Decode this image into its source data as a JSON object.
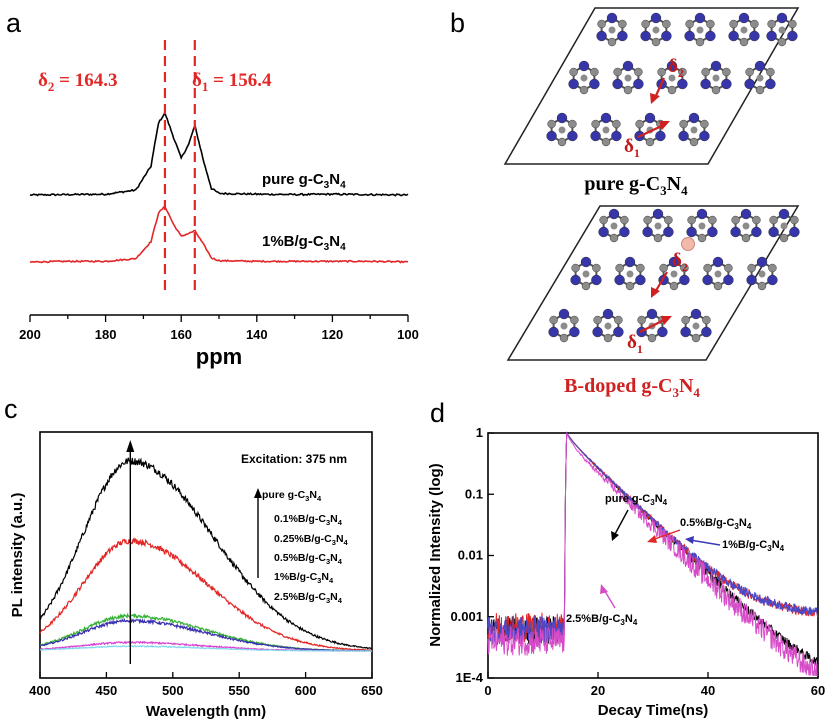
{
  "panels": {
    "a": "a",
    "b": "b",
    "c": "c",
    "d": "d"
  },
  "chart_data": [
    {
      "panel": "a",
      "type": "line",
      "xlabel": "ppm",
      "ylabel": "",
      "xlim": [
        200,
        100
      ],
      "xticks": [
        200,
        180,
        160,
        140,
        120,
        100
      ],
      "series": [
        {
          "name": "pure g-C3N4",
          "label": "pure g-C",
          "color": "#000000",
          "x": [
            200,
            190,
            180,
            172,
            168,
            166,
            164.3,
            162,
            160,
            158,
            156.4,
            154,
            152,
            150,
            140,
            130,
            120,
            110,
            100
          ],
          "y": [
            0,
            0.005,
            0.01,
            0.06,
            0.35,
            0.88,
            1.0,
            0.7,
            0.45,
            0.62,
            0.85,
            0.4,
            0.08,
            0.02,
            0.01,
            0.005,
            0.01,
            0.005,
            0
          ]
        },
        {
          "name": "1%B/g-C3N4",
          "label": "1%B/g-C",
          "color": "#e32626",
          "x": [
            200,
            190,
            180,
            172,
            168,
            166,
            164.3,
            162,
            160,
            158,
            156.4,
            154,
            152,
            150,
            140,
            130,
            120,
            110,
            100
          ],
          "y": [
            0,
            0.01,
            0.01,
            0.05,
            0.3,
            0.72,
            0.82,
            0.55,
            0.38,
            0.42,
            0.46,
            0.25,
            0.06,
            0.02,
            0.01,
            0.01,
            0.01,
            0.01,
            0
          ]
        }
      ],
      "annotations": [
        {
          "text": "δ2 = 164.3",
          "main": "δ",
          "sub": "2",
          "rest": " = 164.3",
          "x": 164.3,
          "color": "#e32626"
        },
        {
          "text": "δ1 = 156.4",
          "main": "δ",
          "sub": "1",
          "rest": " = 156.4",
          "x": 156.4,
          "color": "#e32626"
        }
      ]
    },
    {
      "panel": "c",
      "type": "line",
      "title": "Excitation: 375 nm",
      "xlabel": "Wavelength (nm)",
      "ylabel": "PL intensity (a.u.)",
      "xlim": [
        400,
        650
      ],
      "ylim": [
        0,
        1.05
      ],
      "xticks": [
        400,
        450,
        500,
        550,
        600,
        650
      ],
      "series": [
        {
          "name": "pure g-C3N4",
          "label": "pure g-C",
          "color": "#000000",
          "peak": 1.0,
          "sigL": 36,
          "sigR": 62
        },
        {
          "name": "0.1%B/g-C3N4",
          "label": "0.1%B/g-C",
          "color": "#e32626",
          "peak": 0.58,
          "sigL": 36,
          "sigR": 58
        },
        {
          "name": "0.25%B/g-C3N4",
          "label": "0.25%B/g-C",
          "color": "#33b033",
          "peak": 0.185,
          "sigL": 36,
          "sigR": 56
        },
        {
          "name": "0.5%B/g-C3N4",
          "label": "0.5%B/g-C",
          "color": "#3a2fb0",
          "peak": 0.16,
          "sigL": 36,
          "sigR": 56
        },
        {
          "name": "1%B/g-C3N4",
          "label": "1%B/g-C",
          "color": "#d93fd0",
          "peak": 0.045,
          "sigL": 38,
          "sigR": 56
        },
        {
          "name": "2.5%B/g-C3N4",
          "label": "2.5%B/g-C",
          "color": "#7fd7ea",
          "peak": 0.025,
          "sigL": 40,
          "sigR": 56
        }
      ],
      "peak_wavelength": 468
    },
    {
      "panel": "d",
      "type": "line",
      "xlabel": "Decay Time(ns)",
      "ylabel": "Normalized Intensity (log)",
      "xlim": [
        0,
        60
      ],
      "ylim": [
        0.0001,
        1
      ],
      "yscale": "log",
      "xticks": [
        0,
        20,
        40,
        60
      ],
      "yticks": [
        1,
        0.1,
        0.01,
        0.001,
        0.0001
      ],
      "yticklabels": [
        "1",
        "0.1",
        "0.01",
        "0.001",
        "1E-4"
      ],
      "pulse_time": 14.3,
      "series": [
        {
          "name": "pure g-C3N4",
          "label": "pure g-C",
          "color": "#000000",
          "baseline": 0.0006,
          "tail": [
            0.16,
            1.1,
            0.84,
            5.0,
            0.0004,
            5
          ]
        },
        {
          "name": "0.5%B/g-C3N4",
          "label": "0.5%B/g-C",
          "color": "#e32626",
          "baseline": 0.0007,
          "tail": [
            0.16,
            1.1,
            0.84,
            5.0,
            0.0018,
            14
          ]
        },
        {
          "name": "1%B/g-C3N4",
          "label": "1%B/g-C",
          "color": "#4848c8",
          "baseline": 0.0006,
          "tail": [
            0.16,
            1.1,
            0.84,
            5.0,
            0.0019,
            14
          ]
        },
        {
          "name": "2.5%B/g-C3N4",
          "label": "2.5%B/g-C",
          "color": "#d64cc8",
          "baseline": 0.0004,
          "tail": [
            0.3,
            1.0,
            0.7,
            5.0,
            0.00025,
            4
          ]
        }
      ]
    }
  ],
  "panel_b": {
    "labels": [
      "pure g-C3N4",
      "B-doped g-C3N4"
    ],
    "label_main": [
      "pure g-C",
      "B-doped g-C"
    ],
    "delta_main": "δ",
    "delta_sub": [
      "2",
      "1"
    ]
  },
  "common": {
    "sub3": "3",
    "sub4": "4",
    "mid_n": "N"
  },
  "colors": {
    "atom_n": "#3636a8",
    "atom_c": "#8c8c8c",
    "boron": "#f2b8a8",
    "red": "#e32626"
  }
}
